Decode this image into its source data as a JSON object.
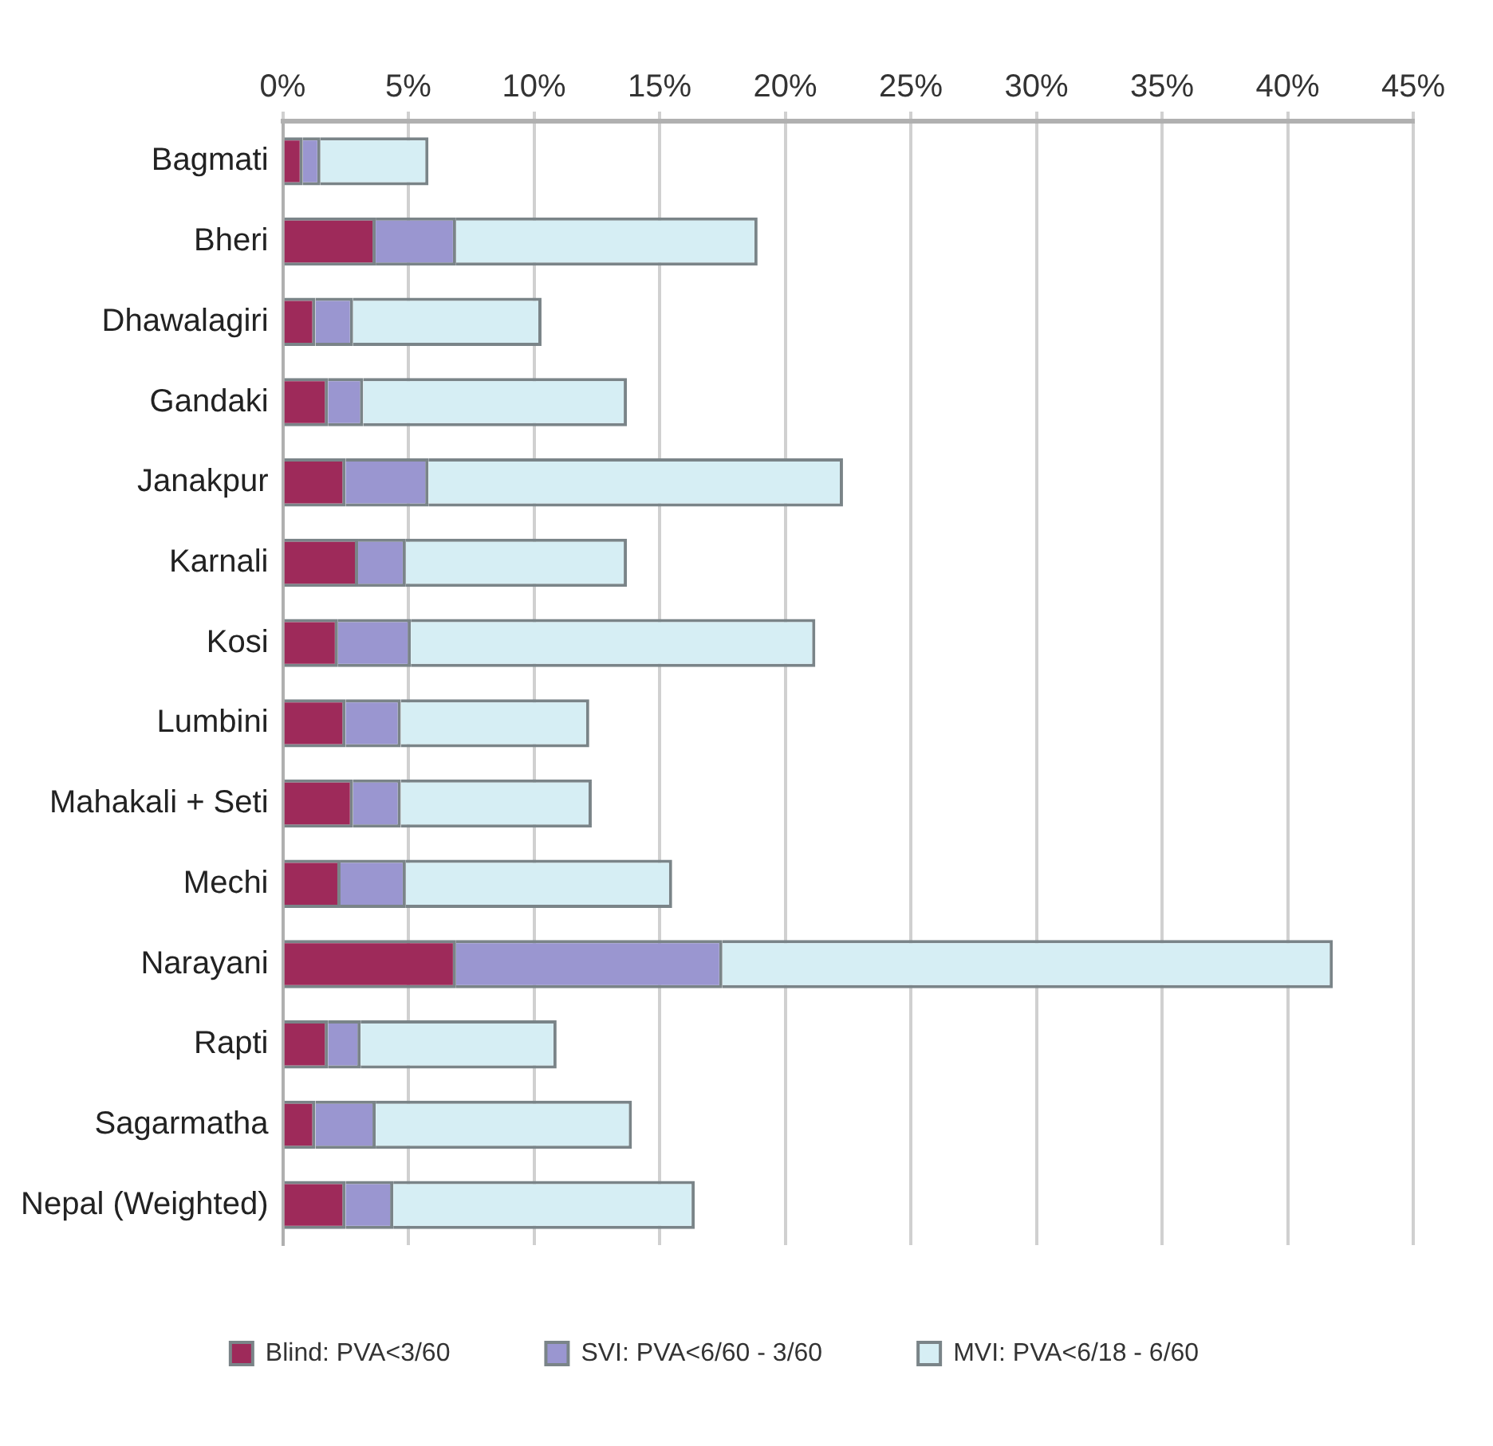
{
  "chart_data": {
    "type": "bar",
    "orientation": "horizontal",
    "stacked": true,
    "grid": "x",
    "legend": "bottom",
    "categories": [
      "Bagmati",
      "Bheri",
      "Dhawalagiri",
      "Gandaki",
      "Janakpur",
      "Karnali",
      "Kosi",
      "Lumbini",
      "Mahakali + Seti",
      "Mechi",
      "Narayani",
      "Rapti",
      "Sagarmatha",
      "Nepal (Weighted)"
    ],
    "xlim": [
      0,
      45
    ],
    "xticks": [
      {
        "value": 0,
        "label": "0%"
      },
      {
        "value": 5,
        "label": "5%"
      },
      {
        "value": 10,
        "label": "10%"
      },
      {
        "value": 15,
        "label": "15%"
      },
      {
        "value": 20,
        "label": "20%"
      },
      {
        "value": 25,
        "label": "25%"
      },
      {
        "value": 30,
        "label": "30%"
      },
      {
        "value": 35,
        "label": "35%"
      },
      {
        "value": 40,
        "label": "40%"
      },
      {
        "value": 45,
        "label": "45%"
      }
    ],
    "series": [
      {
        "name": "Blind: PVA<3/60",
        "color": "#9e2a5a",
        "values": [
          0.8,
          3.7,
          1.3,
          1.8,
          2.5,
          3.0,
          2.2,
          2.5,
          2.8,
          2.3,
          6.9,
          1.8,
          1.3,
          2.5
        ]
      },
      {
        "name": "SVI: PVA<6/60 - 3/60",
        "color": "#9a96d0",
        "values": [
          0.7,
          3.2,
          1.5,
          1.4,
          3.3,
          1.9,
          2.9,
          2.2,
          1.9,
          2.6,
          10.6,
          1.3,
          2.4,
          1.9
        ]
      },
      {
        "name": "MVI: PVA<6/18 - 6/60",
        "color": "#d6eef4",
        "values": [
          4.3,
          12.0,
          7.5,
          10.5,
          16.5,
          8.8,
          16.1,
          7.5,
          7.6,
          10.6,
          24.3,
          7.8,
          10.2,
          12.0
        ]
      }
    ]
  }
}
